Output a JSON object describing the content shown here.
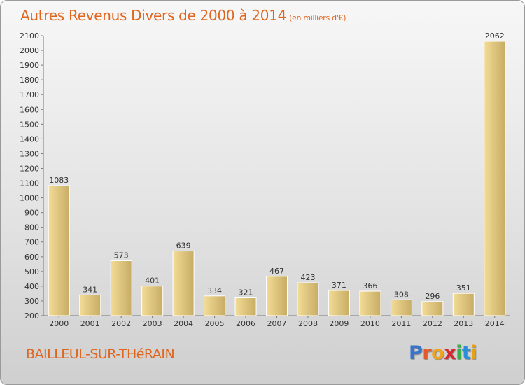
{
  "header": {
    "title": "Autres Revenus Divers de 2000 à 2014",
    "unit": "(en milliers d'€)"
  },
  "footer": {
    "place": "BAILLEUL-SUR-THéRAIN",
    "logo": [
      "P",
      "r",
      "o",
      "x",
      "i",
      "t",
      "i"
    ]
  },
  "colors": {
    "title": "#e0651e",
    "bar_light": "#f3dc97",
    "bar_dark": "#c7ac64",
    "logo": [
      "#3a74c8",
      "#e3592a",
      "#f2a31c",
      "#d9252c",
      "#3bae4a",
      "#2a8fd6",
      "#e1a21d"
    ]
  },
  "chart_data": {
    "type": "bar",
    "title": "Autres Revenus Divers de 2000 à 2014",
    "subtitle": "(en milliers d'€)",
    "xlabel": "",
    "ylabel": "",
    "categories": [
      "2000",
      "2001",
      "2002",
      "2003",
      "2004",
      "2005",
      "2006",
      "2007",
      "2008",
      "2009",
      "2010",
      "2011",
      "2012",
      "2013",
      "2014"
    ],
    "values": [
      1083,
      341,
      573,
      401,
      639,
      334,
      321,
      467,
      423,
      371,
      366,
      308,
      296,
      351,
      2062
    ],
    "ylim": [
      200,
      2100
    ],
    "yticks": [
      200,
      300,
      400,
      500,
      600,
      700,
      800,
      900,
      1000,
      1100,
      1200,
      1300,
      1400,
      1500,
      1600,
      1700,
      1800,
      1900,
      2000,
      2100
    ],
    "grid": false,
    "legend": "none"
  }
}
